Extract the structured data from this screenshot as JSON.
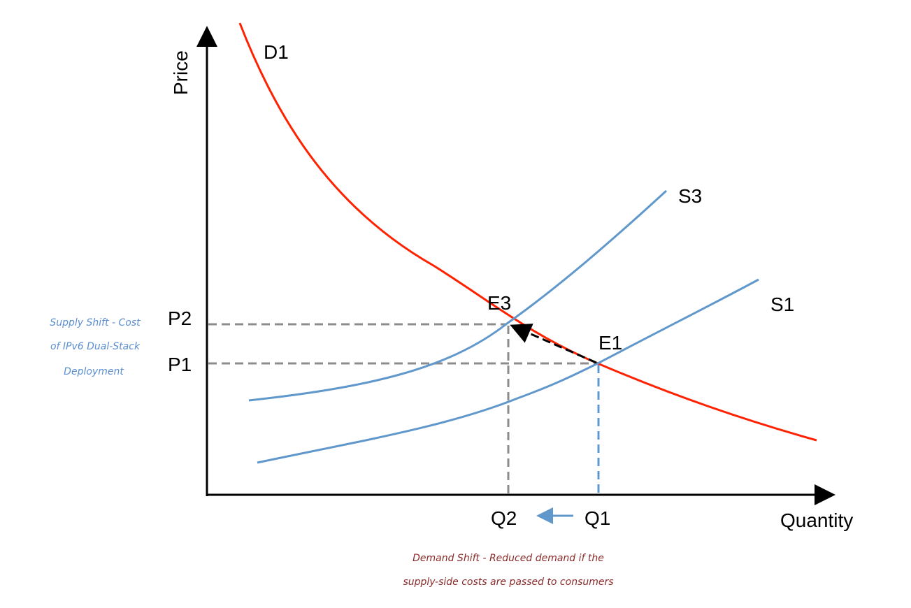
{
  "axes": {
    "y_label": "Price",
    "x_label": "Quantity"
  },
  "curves": {
    "demand": "D1",
    "supply_new": "S3",
    "supply_orig": "S1"
  },
  "points": {
    "e3": "E3",
    "e1": "E1"
  },
  "prices": {
    "p2": "P2",
    "p1": "P1"
  },
  "quantities": {
    "q2": "Q2",
    "q1": "Q1"
  },
  "notes": {
    "supply_shift": [
      "Supply Shift - Cost",
      "of IPv6 Dual-Stack",
      "Deployment"
    ],
    "demand_shift": [
      "Demand Shift - Reduced demand if the",
      "supply-side costs are passed to consumers"
    ]
  },
  "colors": {
    "demand": "#ff2200",
    "supply": "#6198cc",
    "guide": "#8c8c8c",
    "supply_note": "#5b8fd0",
    "demand_note": "#8b2a2a"
  }
}
